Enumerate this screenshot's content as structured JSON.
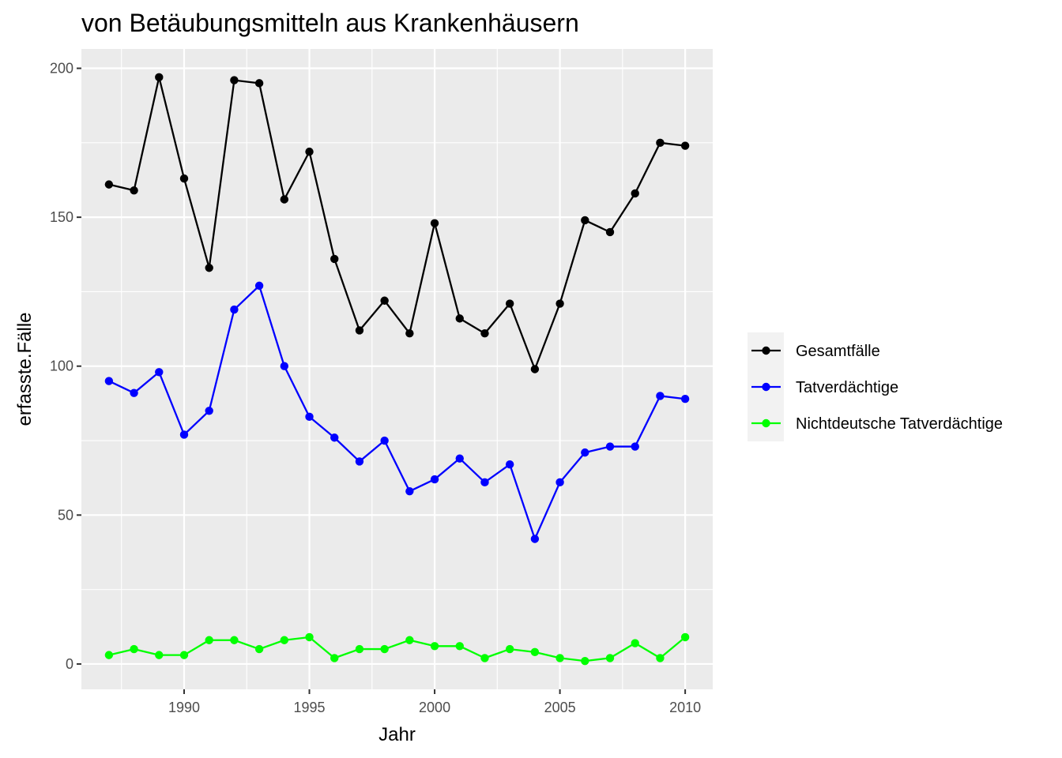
{
  "chart_data": {
    "type": "line",
    "title": "von Betäubungsmitteln aus Krankenhäusern",
    "xlabel": "Jahr",
    "ylabel": "erfasste.Fälle",
    "x": [
      1987,
      1988,
      1989,
      1990,
      1991,
      1992,
      1993,
      1994,
      1995,
      1996,
      1997,
      1998,
      1999,
      2000,
      2001,
      2002,
      2003,
      2004,
      2005,
      2006,
      2007,
      2008,
      2009,
      2010
    ],
    "xlim": [
      1985.9,
      2011.1
    ],
    "ylim": [
      -8.5,
      206.5
    ],
    "x_ticks": [
      1990,
      1995,
      2000,
      2005,
      2010
    ],
    "y_ticks": [
      0,
      50,
      100,
      150,
      200
    ],
    "grid": true,
    "legend_position": "right",
    "series": [
      {
        "name": "Gesamtfälle",
        "color": "#000000",
        "values": [
          161,
          159,
          197,
          163,
          133,
          196,
          195,
          156,
          172,
          136,
          112,
          122,
          111,
          148,
          116,
          111,
          121,
          99,
          121,
          149,
          145,
          158,
          175,
          174
        ]
      },
      {
        "name": "Tatverdächtige",
        "color": "#0000ff",
        "values": [
          95,
          91,
          98,
          77,
          85,
          119,
          127,
          100,
          83,
          76,
          68,
          75,
          58,
          62,
          69,
          61,
          67,
          42,
          61,
          71,
          73,
          73,
          90,
          89
        ]
      },
      {
        "name": "Nichtdeutsche Tatverdächtige",
        "color": "#00ff00",
        "values": [
          3,
          5,
          3,
          3,
          8,
          8,
          5,
          8,
          9,
          2,
          5,
          5,
          8,
          6,
          6,
          2,
          5,
          4,
          2,
          1,
          2,
          7,
          2,
          9
        ]
      }
    ]
  }
}
